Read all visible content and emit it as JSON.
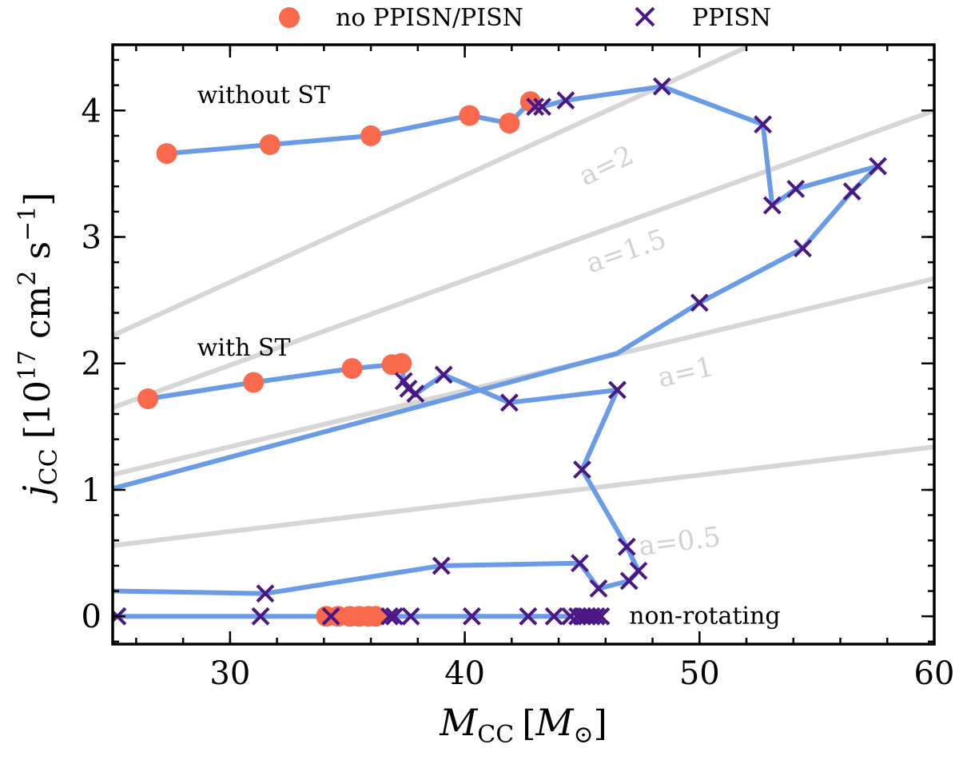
{
  "chart_data": {
    "type": "line",
    "title": "",
    "xlabel": {
      "main": "M",
      "sub": "CC",
      "unit_open": "[",
      "unit": "M",
      "unit_sub": "⊙",
      "unit_close": "]"
    },
    "ylabel": {
      "main": "j",
      "sub": "CC",
      "unit": "[10",
      "unit_exp": "17",
      "unit_mid": " cm",
      "unit_exp2": "2",
      "unit_mid2": " s",
      "unit_exp3": "−1",
      "unit_close": "]"
    },
    "xlim": [
      25,
      60
    ],
    "ylim": [
      -0.22,
      4.52
    ],
    "x_ticks": [
      30,
      40,
      50,
      60
    ],
    "x_tick_labels": [
      "30",
      "40",
      "50",
      "60"
    ],
    "y_ticks": [
      0,
      1,
      2,
      3,
      4
    ],
    "y_tick_labels": [
      "0",
      "1",
      "2",
      "3",
      "4"
    ],
    "x_minor_step": 2,
    "y_minor_step": 0.2,
    "grid": false,
    "legend": {
      "position": "top-center-outside",
      "entries": [
        {
          "label": "no PPISN/PISN",
          "marker": "circle",
          "color": "#f96a4d"
        },
        {
          "label": "PPISN",
          "marker": "x",
          "color": "#4a1785"
        }
      ]
    },
    "colors": {
      "line": "#6a9ce6",
      "circle": "#f96a4d",
      "cross": "#4a1785",
      "reference": "#d6d6d6"
    },
    "reference_curves": [
      {
        "label": "a=0.5",
        "a": 0.5,
        "points": [
          [
            25,
            0.56
          ],
          [
            60,
            1.34
          ]
        ],
        "label_at": [
          49.2,
          0.52
        ],
        "label_angle": -7
      },
      {
        "label": "a=1",
        "a": 1,
        "points": [
          [
            25,
            1.12
          ],
          [
            60,
            2.67
          ]
        ],
        "label_at": [
          49.5,
          1.86
        ],
        "label_angle": -13
      },
      {
        "label": "a=1.5",
        "a": 1.5,
        "points": [
          [
            25,
            1.65
          ],
          [
            60,
            4.0
          ]
        ],
        "label_at": [
          47.0,
          2.82
        ],
        "label_angle": -19
      },
      {
        "label": "a=2",
        "a": 2,
        "points": [
          [
            25,
            2.22
          ],
          [
            52.0,
            4.5
          ]
        ],
        "label_at": [
          46.2,
          3.5
        ],
        "label_angle": -26
      }
    ],
    "series": [
      {
        "name": "without ST",
        "points": [
          [
            27.3,
            3.66
          ],
          [
            31.7,
            3.73
          ],
          [
            36.0,
            3.8
          ],
          [
            40.2,
            3.96
          ],
          [
            41.9,
            3.9
          ],
          [
            42.8,
            4.07
          ],
          [
            43.0,
            4.03
          ],
          [
            43.3,
            4.03
          ],
          [
            44.3,
            4.08
          ],
          [
            48.4,
            4.19
          ],
          [
            52.7,
            3.89
          ],
          [
            53.1,
            3.25
          ],
          [
            54.1,
            3.38
          ],
          [
            57.6,
            3.56
          ],
          [
            56.5,
            3.36
          ],
          [
            54.4,
            2.91
          ],
          [
            50.0,
            2.48
          ],
          [
            46.5,
            2.08
          ],
          [
            25.0,
            1.01
          ]
        ],
        "markers": [
          "o",
          "o",
          "o",
          "o",
          "o",
          "o",
          "x",
          "x",
          "x",
          "x",
          "x",
          "x",
          "x",
          "x",
          "x",
          "x",
          "x",
          "none",
          "none"
        ]
      },
      {
        "name": "with ST",
        "points": [
          [
            26.5,
            1.72
          ],
          [
            31.0,
            1.85
          ],
          [
            35.2,
            1.96
          ],
          [
            36.9,
            1.99
          ],
          [
            37.3,
            2.0
          ],
          [
            37.4,
            1.86
          ],
          [
            37.6,
            1.8
          ],
          [
            37.9,
            1.76
          ],
          [
            39.1,
            1.91
          ],
          [
            41.9,
            1.69
          ],
          [
            46.5,
            1.79
          ],
          [
            45.0,
            1.16
          ],
          [
            46.9,
            0.55
          ],
          [
            47.4,
            0.36
          ],
          [
            47.0,
            0.28
          ],
          [
            45.7,
            0.22
          ],
          [
            44.9,
            0.42
          ],
          [
            39.0,
            0.4
          ],
          [
            31.5,
            0.18
          ],
          [
            25.0,
            0.2
          ]
        ],
        "markers": [
          "o",
          "o",
          "o",
          "o",
          "o",
          "x",
          "x",
          "x",
          "x",
          "x",
          "x",
          "x",
          "x",
          "x",
          "x",
          "x",
          "x",
          "x",
          "x",
          "none"
        ]
      },
      {
        "name": "non-rotating",
        "points": [
          [
            25.2,
            0.0
          ],
          [
            31.3,
            0.0
          ],
          [
            34.1,
            0.0
          ],
          [
            34.3,
            0.0
          ],
          [
            34.6,
            0.0
          ],
          [
            35.1,
            0.0
          ],
          [
            35.5,
            0.0
          ],
          [
            35.9,
            0.0
          ],
          [
            36.2,
            0.0
          ],
          [
            36.8,
            0.0
          ],
          [
            37.0,
            0.0
          ],
          [
            37.7,
            0.0
          ],
          [
            40.3,
            0.0
          ],
          [
            42.7,
            0.0
          ],
          [
            43.8,
            0.0
          ],
          [
            44.5,
            0.0
          ],
          [
            44.8,
            0.0
          ],
          [
            45.0,
            0.0
          ],
          [
            45.2,
            0.0
          ],
          [
            45.4,
            0.0
          ],
          [
            45.6,
            0.0
          ],
          [
            45.8,
            0.0
          ]
        ],
        "markers": [
          "x",
          "x",
          "o",
          "x",
          "o",
          "o",
          "o",
          "o",
          "o",
          "x",
          "x",
          "x",
          "x",
          "x",
          "x",
          "x",
          "x",
          "x",
          "x",
          "x",
          "x",
          "x"
        ]
      }
    ],
    "annotations": [
      {
        "text": "without ST",
        "at": [
          28.6,
          4.06
        ]
      },
      {
        "text": "with ST",
        "at": [
          28.6,
          2.06
        ]
      },
      {
        "text": "non-rotating",
        "at": [
          47.0,
          -0.06
        ]
      }
    ]
  }
}
